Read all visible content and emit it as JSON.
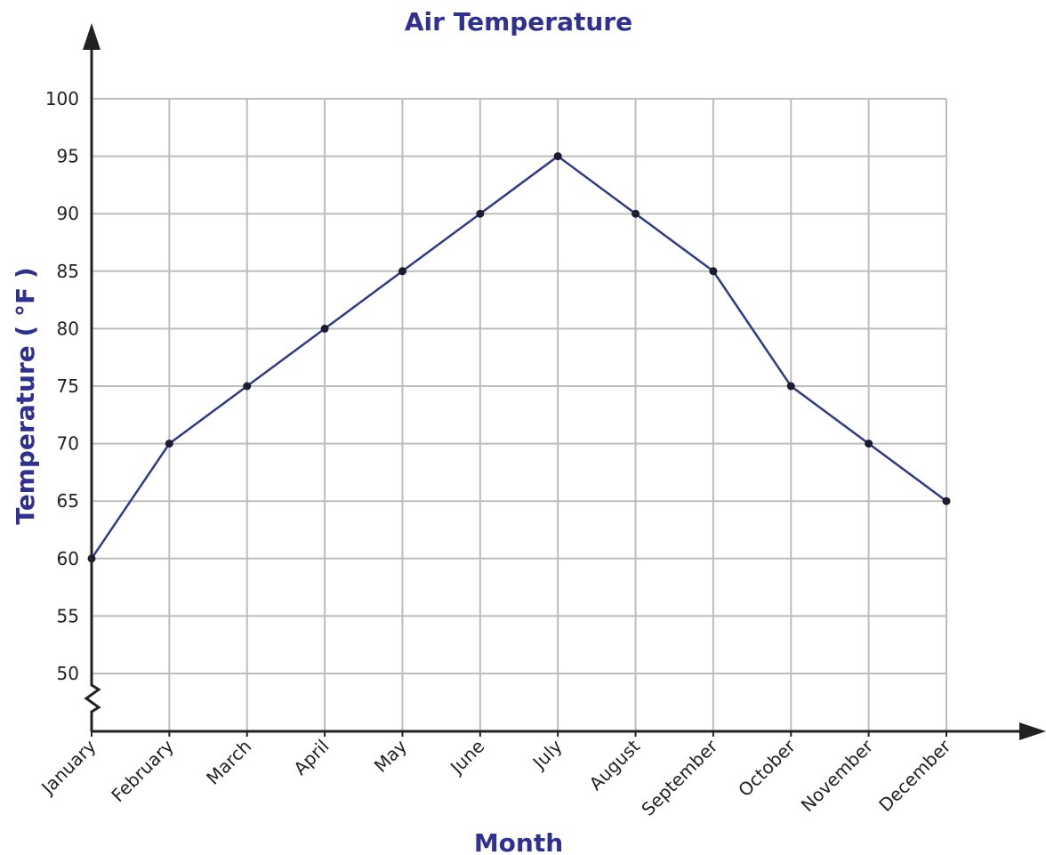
{
  "chart_data": {
    "type": "line",
    "title": "Air Temperature",
    "x_label": "Month",
    "y_label": "Temperature ( °F )",
    "categories": [
      "January",
      "February",
      "March",
      "April",
      "May",
      "June",
      "July",
      "August",
      "September",
      "October",
      "November",
      "December"
    ],
    "series": [
      {
        "name": "Air Temperature",
        "color": "#2e3a8c",
        "values": [
          60,
          70,
          75,
          80,
          85,
          90,
          95,
          90,
          85,
          75,
          70,
          65
        ]
      }
    ],
    "ylim": [
      50,
      100
    ],
    "yticks": [
      50,
      55,
      60,
      65,
      70,
      75,
      80,
      85,
      90,
      95,
      100
    ],
    "grid": true
  }
}
